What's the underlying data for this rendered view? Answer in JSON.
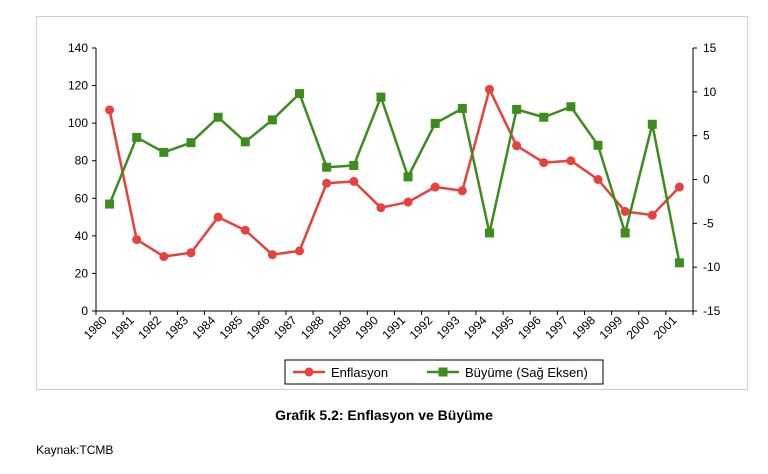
{
  "caption": "Grafik 5.2: Enflasyon ve Büyüme",
  "source": "Kaynak:TCMB",
  "chart_data": {
    "type": "line",
    "title": "",
    "xlabel": "",
    "ylabel": "",
    "categories": [
      "1980",
      "1981",
      "1982",
      "1983",
      "1984",
      "1985",
      "1986",
      "1987",
      "1988",
      "1989",
      "1990",
      "1991",
      "1992",
      "1993",
      "1994",
      "1995",
      "1996",
      "1997",
      "1998",
      "1999",
      "2000",
      "2001"
    ],
    "ylim": [
      0,
      140
    ],
    "y2lim": [
      -15,
      15
    ],
    "yticks": [
      0,
      20,
      40,
      60,
      80,
      100,
      120,
      140
    ],
    "y2ticks": [
      -15,
      -10,
      -5,
      0,
      5,
      10,
      15
    ],
    "grid": false,
    "legend_position": "bottom",
    "series": [
      {
        "name": "Enflasyon",
        "axis": "left",
        "color": "#e8413c",
        "marker": "circle",
        "values": [
          107,
          38,
          29,
          31,
          50,
          43,
          30,
          32,
          68,
          69,
          55,
          58,
          66,
          64,
          118,
          88,
          79,
          80,
          70,
          53,
          51,
          66
        ]
      },
      {
        "name": "Büyüme (Sağ Eksen)",
        "axis": "right",
        "color": "#3c8c1e",
        "marker": "square",
        "values": [
          -2.8,
          4.8,
          3.1,
          4.2,
          7.1,
          4.3,
          6.8,
          9.8,
          1.4,
          1.6,
          9.4,
          0.3,
          6.4,
          8.1,
          -6.1,
          8.0,
          7.1,
          8.3,
          3.9,
          -6.1,
          6.3,
          -9.5
        ]
      }
    ]
  }
}
